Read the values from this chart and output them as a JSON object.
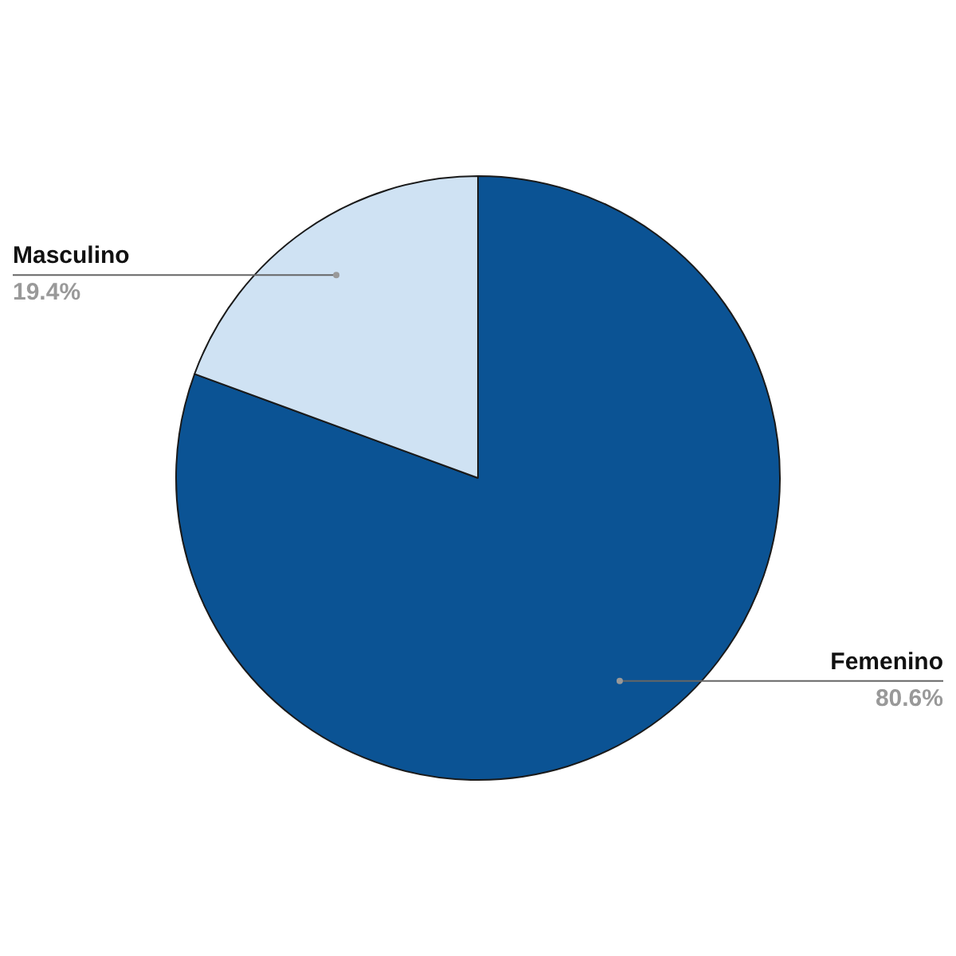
{
  "chart_data": {
    "type": "pie",
    "categories": [
      "Femenino",
      "Masculino"
    ],
    "values": [
      80.6,
      19.4
    ],
    "colors": [
      "#0b5394",
      "#cfe2f3"
    ],
    "value_labels": [
      "80.6%",
      "19.4%"
    ],
    "legend": false
  }
}
